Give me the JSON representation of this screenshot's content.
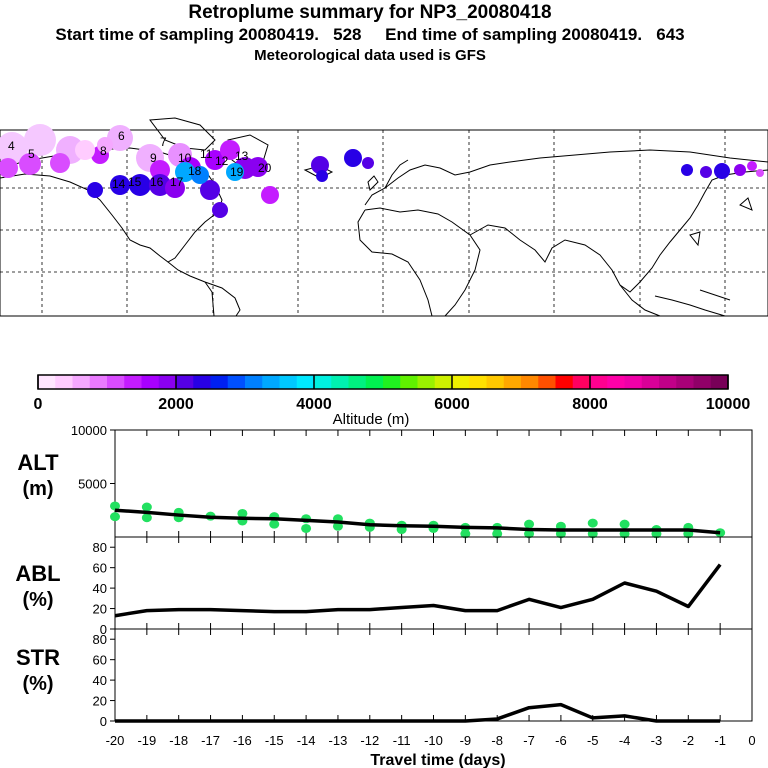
{
  "header": {
    "title": "Retroplume summary for NP3_20080418",
    "subtitle": "Start time of sampling 20080419.   528     End time of sampling 20080419.   643",
    "met_line": "Meteorological data used is GFS"
  },
  "colorbar": {
    "title": "Altitude (m)",
    "tick_labels": [
      "0",
      "2000",
      "4000",
      "6000",
      "8000",
      "10000"
    ],
    "range": [
      0,
      10000
    ],
    "colors": [
      "#ffe6ff",
      "#ffccff",
      "#f5a8ff",
      "#ea7aff",
      "#d94cff",
      "#c41cff",
      "#a800ff",
      "#8a00f0",
      "#5500e6",
      "#2800e6",
      "#0020f0",
      "#0050ff",
      "#0080ff",
      "#00a8ff",
      "#00c8ff",
      "#00e8ff",
      "#00f0e0",
      "#00f0b0",
      "#00f080",
      "#00f050",
      "#20f020",
      "#60f000",
      "#9af000",
      "#cdf000",
      "#f0f000",
      "#ffe000",
      "#ffc800",
      "#ffa800",
      "#ff8800",
      "#ff5000",
      "#ff0000",
      "#ff0060",
      "#ff0090",
      "#ff00a8",
      "#f000a8",
      "#d80098",
      "#c00088",
      "#a80078",
      "#900068",
      "#780058"
    ]
  },
  "map": {
    "labels": [
      "4",
      "5",
      "6",
      "7",
      "8",
      "9",
      "10",
      "11",
      "12",
      "13",
      "14",
      "15",
      "16",
      "17",
      "18",
      "19",
      "20"
    ]
  },
  "axes_labels": {
    "alt": [
      "ALT",
      "(m)"
    ],
    "abl": [
      "ABL",
      "(%)"
    ],
    "str": [
      "STR",
      "(%)"
    ],
    "xlabel": "Travel time (days)"
  },
  "chart_data": [
    {
      "type": "line",
      "name": "ALT",
      "ylabel": "ALT (m)",
      "ylim": [
        0,
        10000
      ],
      "yticks": [
        5000,
        10000
      ],
      "x": [
        -20,
        -19,
        -18,
        -17,
        -16,
        -15,
        -14,
        -13,
        -12,
        -11,
        -10,
        -9,
        -8,
        -7,
        -6,
        -5,
        -4,
        -3,
        -2,
        -1
      ],
      "values": [
        2500,
        2300,
        2050,
        1850,
        1750,
        1700,
        1550,
        1400,
        1150,
        1050,
        1000,
        900,
        850,
        700,
        650,
        650,
        650,
        650,
        650,
        400
      ],
      "scatter_points": [
        {
          "x": -20,
          "y": 2900
        },
        {
          "x": -20,
          "y": 1900
        },
        {
          "x": -19,
          "y": 2800
        },
        {
          "x": -19,
          "y": 1800
        },
        {
          "x": -18,
          "y": 2300
        },
        {
          "x": -18,
          "y": 1800
        },
        {
          "x": -17,
          "y": 1950
        },
        {
          "x": -16,
          "y": 2200
        },
        {
          "x": -16,
          "y": 1500
        },
        {
          "x": -15,
          "y": 1900
        },
        {
          "x": -15,
          "y": 1200
        },
        {
          "x": -14,
          "y": 1700
        },
        {
          "x": -14,
          "y": 800
        },
        {
          "x": -13,
          "y": 1700
        },
        {
          "x": -13,
          "y": 1000
        },
        {
          "x": -12,
          "y": 1300
        },
        {
          "x": -12,
          "y": 900
        },
        {
          "x": -11,
          "y": 1100
        },
        {
          "x": -11,
          "y": 700
        },
        {
          "x": -10,
          "y": 1100
        },
        {
          "x": -10,
          "y": 800
        },
        {
          "x": -9,
          "y": 900
        },
        {
          "x": -9,
          "y": 300
        },
        {
          "x": -8,
          "y": 900
        },
        {
          "x": -8,
          "y": 300
        },
        {
          "x": -7,
          "y": 1200
        },
        {
          "x": -7,
          "y": 300
        },
        {
          "x": -6,
          "y": 1000
        },
        {
          "x": -6,
          "y": 300
        },
        {
          "x": -5,
          "y": 1300
        },
        {
          "x": -5,
          "y": 300
        },
        {
          "x": -4,
          "y": 1200
        },
        {
          "x": -4,
          "y": 300
        },
        {
          "x": -3,
          "y": 700
        },
        {
          "x": -3,
          "y": 300
        },
        {
          "x": -2,
          "y": 900
        },
        {
          "x": -2,
          "y": 300
        },
        {
          "x": -1,
          "y": 400
        }
      ],
      "scatter_color": "#22e060"
    },
    {
      "type": "line",
      "name": "ABL",
      "ylabel": "ABL (%)",
      "ylim": [
        0,
        90
      ],
      "yticks": [
        0,
        20,
        40,
        60,
        80
      ],
      "x": [
        -20,
        -19,
        -18,
        -17,
        -16,
        -15,
        -14,
        -13,
        -12,
        -11,
        -10,
        -9,
        -8,
        -7,
        -6,
        -5,
        -4,
        -3,
        -2,
        -1
      ],
      "values": [
        13,
        18,
        19,
        19,
        18,
        17,
        17,
        19,
        19,
        21,
        23,
        18,
        18,
        29,
        21,
        29,
        45,
        37,
        22,
        63
      ]
    },
    {
      "type": "line",
      "name": "STR",
      "ylabel": "STR (%)",
      "ylim": [
        0,
        90
      ],
      "yticks": [
        0,
        20,
        40,
        60,
        80
      ],
      "x": [
        -20,
        -19,
        -18,
        -17,
        -16,
        -15,
        -14,
        -13,
        -12,
        -11,
        -10,
        -9,
        -8,
        -7,
        -6,
        -5,
        -4,
        -3,
        -2,
        -1
      ],
      "values": [
        0,
        0,
        0,
        0,
        0,
        0,
        0,
        0,
        0,
        0,
        0,
        0,
        2,
        13,
        16,
        3,
        5,
        0,
        0,
        0
      ],
      "xlabel": "Travel time (days)",
      "xticks": [
        -20,
        -19,
        -18,
        -17,
        -16,
        -15,
        -14,
        -13,
        -12,
        -11,
        -10,
        -9,
        -8,
        -7,
        -6,
        -5,
        -4,
        -3,
        -2,
        -1,
        0
      ],
      "xtick_labels": [
        "-20",
        "-19",
        "-18",
        "-17",
        "-16",
        "-15",
        "-14",
        "-13",
        "-12",
        "-11",
        "-10",
        "-9",
        "-8",
        "-7",
        "-6",
        "-5",
        "-4",
        "-3",
        "-2",
        "-1",
        "0"
      ]
    }
  ]
}
